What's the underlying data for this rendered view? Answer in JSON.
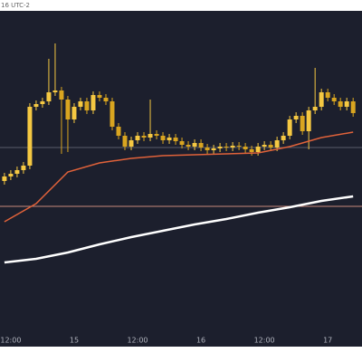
{
  "chart_data": {
    "type": "candlestick",
    "subtitle": "16 UTC-2",
    "xlim": [
      -0.7,
      56.4
    ],
    "ylim": [
      0,
      353
    ],
    "xticks": [
      {
        "value": 1,
        "label": "12:00"
      },
      {
        "value": 11,
        "label": "15"
      },
      {
        "value": 21,
        "label": "12:00"
      },
      {
        "value": 31,
        "label": "16"
      },
      {
        "value": 41,
        "label": "12:00"
      },
      {
        "value": 51,
        "label": "17"
      }
    ],
    "up_color": "#f5c842",
    "down_color": "#d9a520",
    "open": [
      165,
      170,
      173,
      177,
      182,
      247,
      250,
      253,
      263,
      265,
      255,
      233,
      247,
      253,
      243,
      260,
      257,
      253,
      225,
      215,
      203,
      210,
      215,
      213,
      217,
      215,
      210,
      213,
      209,
      205,
      203,
      207,
      202,
      199,
      201,
      203,
      202,
      204,
      203,
      200,
      197,
      203,
      205,
      202,
      210,
      215,
      233,
      237,
      220,
      243,
      247,
      263,
      257,
      253,
      247,
      253
    ],
    "high": [
      174,
      177,
      181,
      186,
      251,
      254,
      257,
      300,
      317,
      269,
      259,
      251,
      257,
      257,
      264,
      264,
      261,
      257,
      229,
      219,
      214,
      219,
      219,
      255,
      221,
      219,
      217,
      217,
      213,
      209,
      211,
      211,
      206,
      205,
      207,
      207,
      208,
      208,
      207,
      204,
      207,
      209,
      209,
      214,
      219,
      237,
      241,
      241,
      247,
      290,
      267,
      267,
      261,
      257,
      257,
      257
    ],
    "low": [
      161,
      166,
      169,
      173,
      178,
      243,
      246,
      249,
      259,
      195,
      197,
      229,
      243,
      239,
      239,
      253,
      249,
      221,
      211,
      199,
      199,
      206,
      209,
      209,
      211,
      206,
      206,
      205,
      201,
      199,
      199,
      198,
      195,
      195,
      197,
      198,
      198,
      199,
      196,
      193,
      193,
      199,
      198,
      198,
      206,
      211,
      229,
      216,
      200,
      239,
      243,
      253,
      249,
      243,
      243,
      236
    ],
    "close": [
      170,
      173,
      177,
      182,
      247,
      250,
      253,
      263,
      265,
      255,
      233,
      247,
      253,
      243,
      260,
      257,
      253,
      225,
      215,
      203,
      210,
      215,
      213,
      217,
      215,
      210,
      213,
      209,
      205,
      203,
      207,
      202,
      199,
      201,
      203,
      202,
      204,
      203,
      200,
      197,
      203,
      205,
      202,
      210,
      215,
      233,
      237,
      220,
      243,
      247,
      263,
      257,
      253,
      247,
      253,
      240
    ],
    "lines": [
      {
        "color": "#e0623a",
        "x": [
          0,
          5,
          10,
          15,
          20,
          25,
          30,
          35,
          40,
          45,
          50,
          55
        ],
        "values": [
          120,
          140,
          175,
          185,
          190,
          193,
          194,
          195,
          196,
          203,
          213,
          219
        ]
      },
      {
        "color": "#ffffff",
        "x": [
          0,
          5,
          10,
          15,
          20,
          25,
          30,
          35,
          40,
          45,
          50,
          55
        ],
        "values": [
          75,
          79,
          86,
          95,
          103,
          110,
          117,
          123,
          130,
          136,
          143,
          148
        ]
      }
    ],
    "levels": [
      {
        "color": "#c98a7a",
        "value": 137
      },
      {
        "color": "#5a5e6c",
        "value": 202
      }
    ]
  }
}
